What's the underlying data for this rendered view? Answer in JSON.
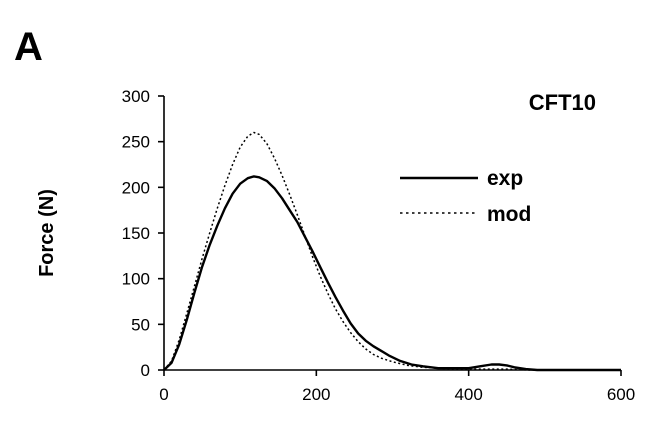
{
  "panel_label": "A",
  "chart_data": {
    "type": "line",
    "title": "CFT10",
    "xlabel": "",
    "ylabel": "Force (N)",
    "xlim": [
      0,
      600
    ],
    "ylim": [
      0,
      300
    ],
    "x_ticks": [
      0,
      200,
      400,
      600
    ],
    "y_ticks": [
      0,
      50,
      100,
      150,
      200,
      250,
      300
    ],
    "grid": false,
    "legend_position": "right",
    "series": [
      {
        "name": "exp",
        "style": "solid",
        "color": "#000000",
        "points": [
          [
            0,
            0
          ],
          [
            10,
            8
          ],
          [
            20,
            28
          ],
          [
            30,
            55
          ],
          [
            40,
            85
          ],
          [
            50,
            113
          ],
          [
            60,
            137
          ],
          [
            70,
            158
          ],
          [
            80,
            177
          ],
          [
            90,
            193
          ],
          [
            100,
            204
          ],
          [
            110,
            210
          ],
          [
            118,
            212
          ],
          [
            125,
            211
          ],
          [
            135,
            207
          ],
          [
            145,
            199
          ],
          [
            155,
            188
          ],
          [
            165,
            175
          ],
          [
            175,
            162
          ],
          [
            185,
            146
          ],
          [
            195,
            130
          ],
          [
            205,
            113
          ],
          [
            215,
            96
          ],
          [
            225,
            80
          ],
          [
            235,
            65
          ],
          [
            245,
            51
          ],
          [
            255,
            40
          ],
          [
            265,
            32
          ],
          [
            275,
            26
          ],
          [
            285,
            21
          ],
          [
            295,
            16
          ],
          [
            310,
            10
          ],
          [
            325,
            6
          ],
          [
            340,
            4
          ],
          [
            360,
            2
          ],
          [
            380,
            2
          ],
          [
            400,
            2
          ],
          [
            415,
            4
          ],
          [
            430,
            6
          ],
          [
            440,
            6
          ],
          [
            450,
            5
          ],
          [
            460,
            3
          ],
          [
            475,
            1
          ],
          [
            490,
            0
          ],
          [
            600,
            0
          ]
        ]
      },
      {
        "name": "mod",
        "style": "dotted",
        "color": "#000000",
        "points": [
          [
            0,
            0
          ],
          [
            10,
            10
          ],
          [
            20,
            33
          ],
          [
            30,
            62
          ],
          [
            40,
            92
          ],
          [
            50,
            122
          ],
          [
            60,
            150
          ],
          [
            70,
            177
          ],
          [
            80,
            202
          ],
          [
            90,
            225
          ],
          [
            100,
            244
          ],
          [
            110,
            256
          ],
          [
            118,
            260
          ],
          [
            125,
            258
          ],
          [
            135,
            248
          ],
          [
            145,
            232
          ],
          [
            155,
            213
          ],
          [
            165,
            192
          ],
          [
            175,
            170
          ],
          [
            185,
            147
          ],
          [
            195,
            124
          ],
          [
            205,
            103
          ],
          [
            215,
            84
          ],
          [
            225,
            67
          ],
          [
            235,
            53
          ],
          [
            245,
            41
          ],
          [
            255,
            31
          ],
          [
            265,
            23
          ],
          [
            275,
            17
          ],
          [
            285,
            13
          ],
          [
            300,
            9
          ],
          [
            320,
            5
          ],
          [
            340,
            3
          ],
          [
            360,
            2
          ],
          [
            390,
            1
          ],
          [
            420,
            1
          ],
          [
            450,
            1
          ],
          [
            480,
            0
          ],
          [
            600,
            0
          ]
        ]
      }
    ]
  }
}
